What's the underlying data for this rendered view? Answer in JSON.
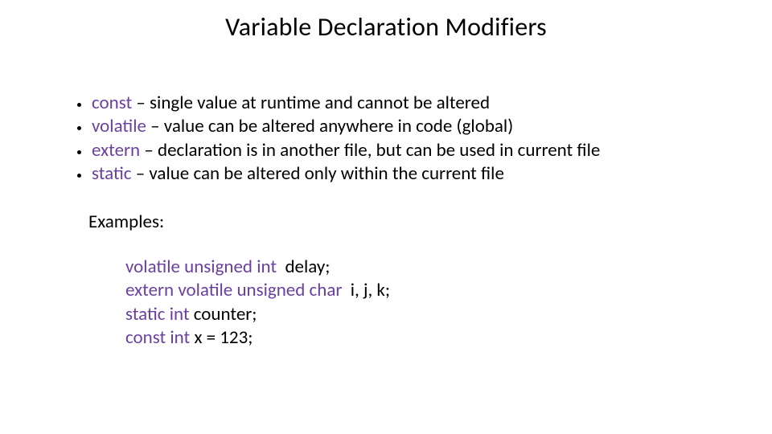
{
  "title": "Variable Declaration Modifiers",
  "title_color": "#000000",
  "title_fontsize": 32,
  "body_fontsize": 23,
  "keyword_color": "#6a3fa0",
  "text_color": "#000000",
  "background_color": "#ffffff",
  "bullets": [
    {
      "keyword": "const",
      "desc": " – single value at runtime and cannot be altered"
    },
    {
      "keyword": "volatile",
      "desc": " – value can be altered anywhere in code (global)"
    },
    {
      "keyword": "extern",
      "desc": " – declaration is in another file, but can be used in current file"
    },
    {
      "keyword": " static",
      "desc": " – value can be altered only within the current file"
    }
  ],
  "examples_label": "Examples:",
  "examples": [
    {
      "keyword": "volatile unsigned int",
      "rest": "  delay;"
    },
    {
      "keyword": "extern volatile unsigned char",
      "rest": "  i, j, k;"
    },
    {
      "keyword": "static int",
      "rest": " counter;"
    },
    {
      "keyword": "const int",
      "rest": " x = 123;"
    }
  ]
}
